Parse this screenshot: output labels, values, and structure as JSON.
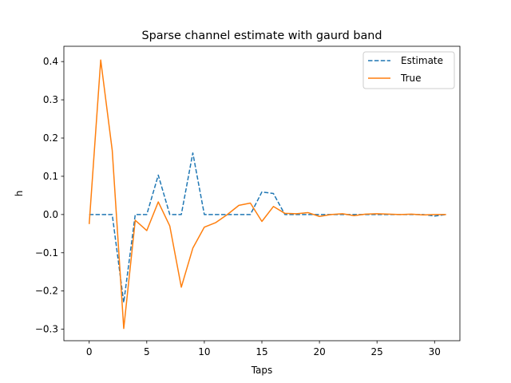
{
  "chart_data": {
    "type": "line",
    "title": "Sparse channel estimate with gaurd band",
    "xlabel": "Taps",
    "ylabel": "h",
    "xlim": [
      -2.2,
      32.2
    ],
    "ylim": [
      -0.33,
      0.44
    ],
    "xticks": [
      0,
      5,
      10,
      15,
      20,
      25,
      30
    ],
    "xtick_labels": [
      "0",
      "5",
      "10",
      "15",
      "20",
      "25",
      "30"
    ],
    "yticks": [
      -0.3,
      -0.2,
      -0.1,
      0.0,
      0.1,
      0.2,
      0.3,
      0.4
    ],
    "ytick_labels": [
      "−0.3",
      "−0.2",
      "−0.1",
      "0.0",
      "0.1",
      "0.2",
      "0.3",
      "0.4"
    ],
    "grid": false,
    "legend_position": "top-right",
    "x": [
      0,
      1,
      2,
      3,
      4,
      5,
      6,
      7,
      8,
      9,
      10,
      11,
      12,
      13,
      14,
      15,
      16,
      17,
      18,
      19,
      20,
      21,
      22,
      23,
      24,
      25,
      26,
      27,
      28,
      29,
      30,
      31
    ],
    "series": [
      {
        "name": "Estimate",
        "color": "#1f77b4",
        "linestyle": "dashed",
        "values": [
          0.0,
          0.0,
          0.0,
          -0.23,
          0.0,
          0.0,
          0.103,
          0.0,
          0.0,
          0.161,
          0.0,
          0.0,
          0.0,
          0.0,
          0.0,
          0.059,
          0.055,
          0.0,
          0.0,
          0.0,
          0.0,
          0.0,
          0.0,
          0.0,
          0.0,
          0.0,
          0.0,
          0.0,
          0.0,
          0.0,
          -0.004,
          0.0
        ]
      },
      {
        "name": "True",
        "color": "#ff7f0e",
        "linestyle": "solid",
        "values": [
          -0.025,
          0.404,
          0.168,
          -0.298,
          -0.015,
          -0.042,
          0.033,
          -0.03,
          -0.19,
          -0.088,
          -0.033,
          -0.021,
          0.0,
          0.024,
          0.03,
          -0.018,
          0.021,
          0.003,
          0.002,
          0.005,
          -0.005,
          0.0,
          0.002,
          -0.003,
          0.001,
          0.002,
          0.001,
          0.0,
          0.001,
          -0.001,
          0.0,
          0.0
        ]
      }
    ]
  }
}
